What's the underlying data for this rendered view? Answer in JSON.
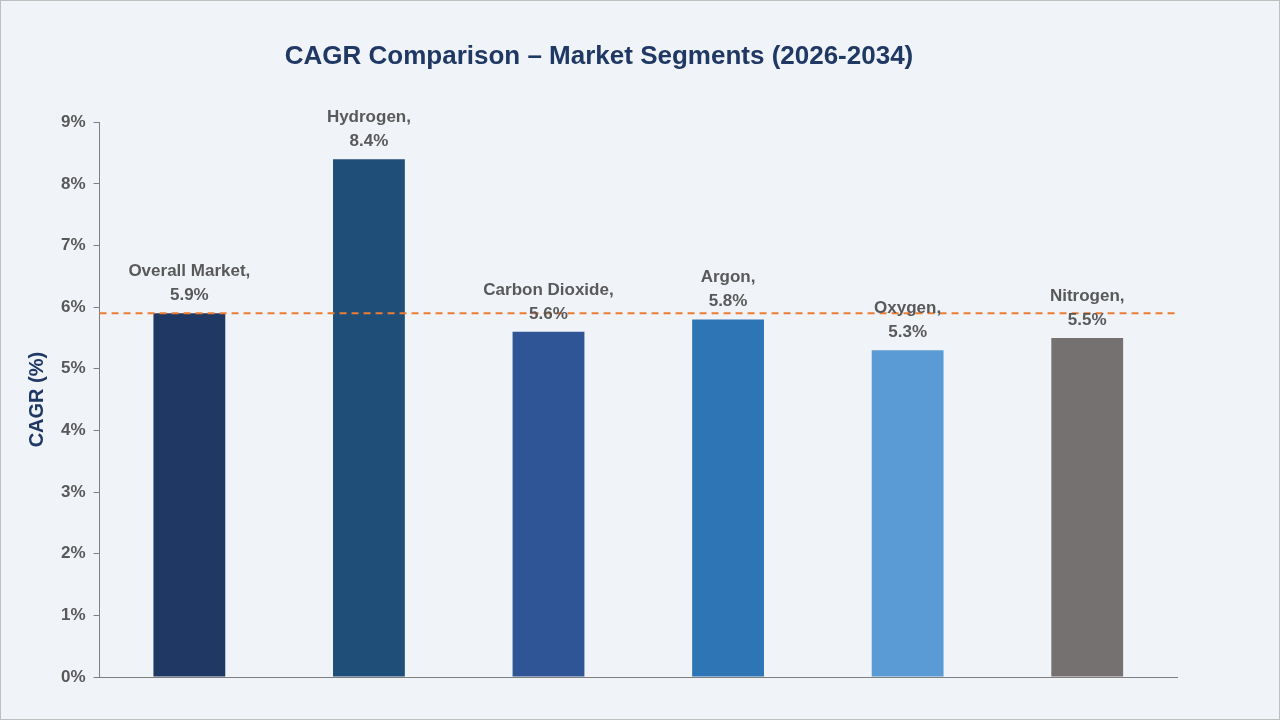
{
  "chart_data": {
    "type": "bar",
    "title": "CAGR Comparison – Market Segments (2026-2034)",
    "ylabel": "CAGR (%)",
    "categories": [
      null,
      null,
      null,
      null,
      null,
      null
    ],
    "values": [
      5.9,
      8.4,
      5.6,
      5.8,
      5.3,
      5.5
    ],
    "colors": [
      "#203864",
      "#1f4e79",
      "#2f5597",
      "#2e75b6",
      "#5b9bd5",
      "#767171"
    ],
    "value_labels": [
      "Overall Market, 5.9%",
      "Hydrogen, 8.4%",
      "Carbon Dioxide, 5.6%",
      "Argon, 5.8%",
      "Oxygen, 5.3%",
      "Nitrogen, 5.5%"
    ],
    "ylim": [
      0,
      9
    ],
    "yticks": [
      {
        "value": 0,
        "label": "0%"
      },
      {
        "value": 1,
        "label": "1%"
      },
      {
        "value": 2,
        "label": "2%"
      },
      {
        "value": 3,
        "label": "3%"
      },
      {
        "value": 4,
        "label": "4%"
      },
      {
        "value": 5,
        "label": "5%"
      },
      {
        "value": 6,
        "label": "6%"
      },
      {
        "value": 7,
        "label": "7%"
      },
      {
        "value": 8,
        "label": "8%"
      },
      {
        "value": 9,
        "label": "9%"
      }
    ],
    "ref_lines": [
      {
        "axis": "y",
        "value": 5.9,
        "color": "#ed7d31",
        "line_style": "dashed"
      }
    ],
    "tick_labels": "y",
    "grid": false,
    "legend": false
  }
}
